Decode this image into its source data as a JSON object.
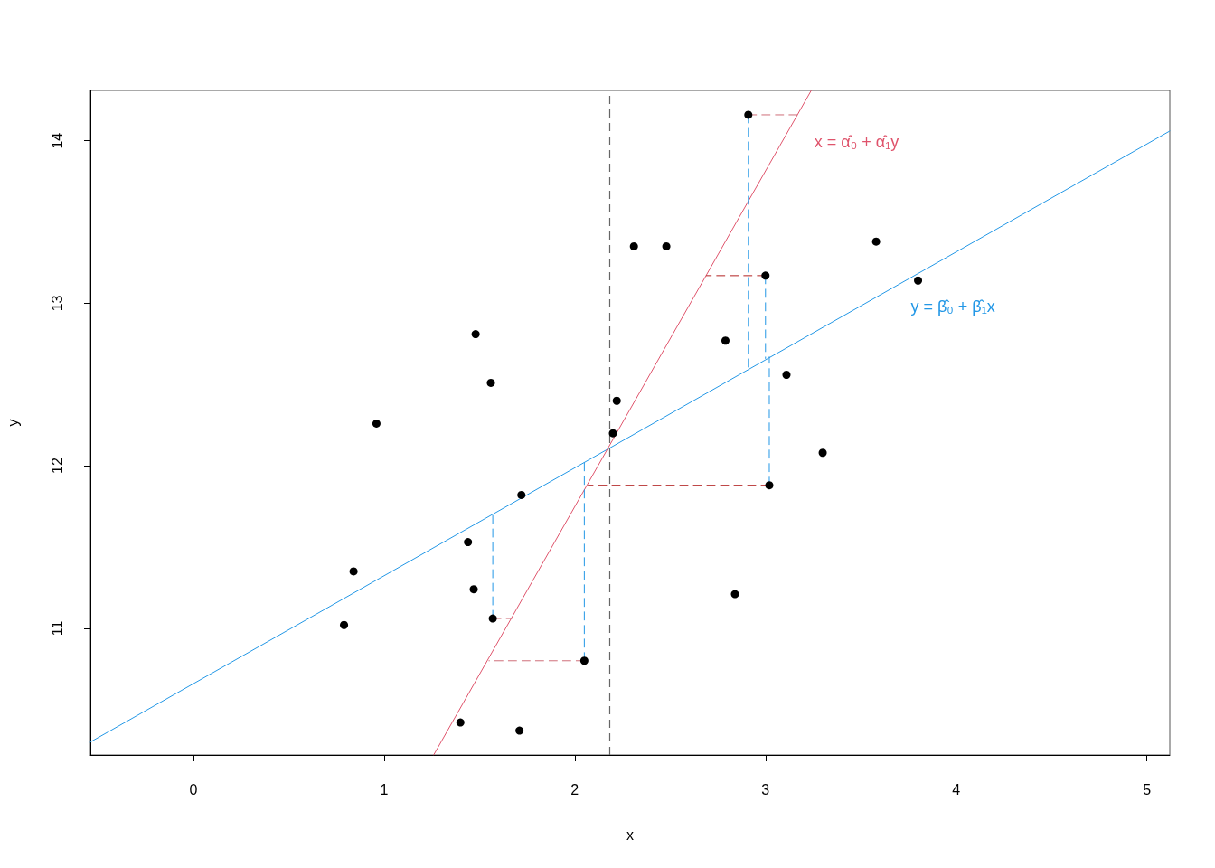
{
  "chart_data": {
    "type": "scatter",
    "xlabel": "x",
    "ylabel": "y",
    "xlim": [
      -0.54,
      5.12
    ],
    "ylim": [
      10.22,
      14.31
    ],
    "xticks": [
      0,
      1,
      2,
      3,
      4,
      5
    ],
    "yticks": [
      11,
      12,
      13,
      14
    ],
    "grid": false,
    "legend": false,
    "marker": "circle",
    "ref_lines": [
      {
        "axis": "x",
        "value": 2.18,
        "color": "#666666",
        "line_style": "dashed"
      },
      {
        "axis": "y",
        "value": 12.11,
        "color": "#666666",
        "line_style": "dashed"
      }
    ],
    "series": [
      {
        "type": "line",
        "name": "y = β̂₀ + β̂₁x",
        "color": "#2297e6",
        "marker": "none",
        "x": [
          -0.54,
          5.12
        ],
        "values": [
          10.3,
          14.06
        ]
      },
      {
        "type": "line",
        "name": "x = α̂₀ + α̂₁y",
        "color": "#df536b",
        "marker": "none",
        "x": [
          1.26,
          3.24
        ],
        "values": [
          10.22,
          14.31
        ]
      },
      {
        "type": "line",
        "color": "#2297e6",
        "marker": "none",
        "line_style": "dashed",
        "x": [
          2.91,
          2.91
        ],
        "values": [
          14.16,
          12.6
        ]
      },
      {
        "type": "line",
        "color": "#2297e6",
        "marker": "none",
        "line_style": "dashed",
        "x": [
          3.0,
          3.0
        ],
        "values": [
          13.17,
          12.66
        ]
      },
      {
        "type": "line",
        "color": "#2297e6",
        "marker": "none",
        "line_style": "dashed",
        "x": [
          3.02,
          3.02
        ],
        "values": [
          11.88,
          12.67
        ]
      },
      {
        "type": "line",
        "color": "#2297e6",
        "marker": "none",
        "line_style": "dashed",
        "x": [
          1.57,
          1.57
        ],
        "values": [
          11.06,
          11.7
        ]
      },
      {
        "type": "line",
        "color": "#2297e6",
        "marker": "none",
        "line_style": "dashed",
        "x": [
          2.05,
          2.05
        ],
        "values": [
          10.8,
          12.02
        ]
      },
      {
        "type": "line",
        "color": "#cf6f7a",
        "marker": "none",
        "line_style": "dashed",
        "x": [
          2.91,
          3.17
        ],
        "values": [
          14.16,
          14.16
        ]
      },
      {
        "type": "line",
        "color": "#cf6f7a",
        "marker": "none",
        "line_style": "dashed",
        "x": [
          1.57,
          1.67
        ],
        "values": [
          11.06,
          11.06
        ]
      },
      {
        "type": "line",
        "color": "#cf6f7a",
        "marker": "none",
        "line_style": "dashed",
        "x": [
          2.05,
          1.55
        ],
        "values": [
          10.8,
          10.8
        ]
      },
      {
        "type": "line",
        "color": "#b22222",
        "marker": "none",
        "line_style": "dashed",
        "x": [
          3.0,
          2.69
        ],
        "values": [
          13.17,
          13.17
        ]
      },
      {
        "type": "line",
        "color": "#b22222",
        "marker": "none",
        "line_style": "dashed",
        "x": [
          3.02,
          2.07
        ],
        "values": [
          11.88,
          11.88
        ]
      },
      {
        "color": "#000000",
        "x": [
          0.79,
          0.84,
          0.96,
          1.4,
          1.44,
          1.47,
          1.48,
          1.56,
          1.57,
          1.71,
          1.72,
          2.05,
          2.2,
          2.22,
          2.31,
          2.48,
          2.79,
          2.84,
          2.91,
          3.0,
          3.02,
          3.11,
          3.3,
          3.58,
          3.8
        ],
        "values": [
          11.02,
          11.35,
          12.26,
          10.42,
          11.53,
          11.24,
          12.81,
          12.51,
          11.06,
          10.37,
          11.82,
          10.8,
          12.2,
          12.4,
          13.35,
          13.35,
          12.77,
          11.21,
          14.16,
          13.17,
          11.88,
          12.56,
          12.08,
          13.38,
          13.14
        ]
      }
    ]
  }
}
